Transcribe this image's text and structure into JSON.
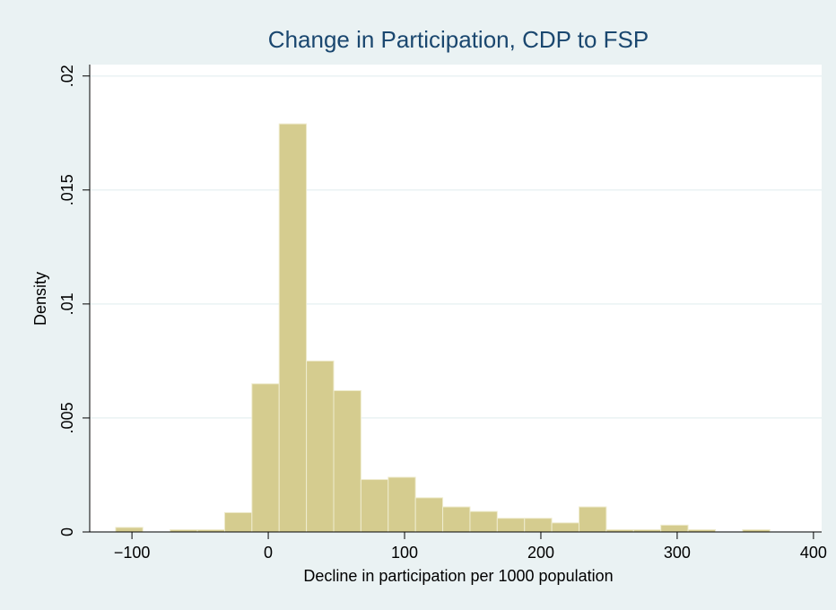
{
  "chart_data": {
    "type": "histogram",
    "title": "Change in Participation, CDP to FSP",
    "x_label": "Decline in participation per 1000 population",
    "y_label": "Density",
    "bins": [
      -112,
      -92,
      -72,
      -52,
      -32,
      -12,
      8,
      28,
      48,
      68,
      88,
      108,
      128,
      148,
      168,
      188,
      208,
      228,
      248,
      268,
      288,
      308,
      328,
      348,
      368,
      388
    ],
    "values": [
      0.0002,
      0,
      0.0001,
      0.0001,
      0.00085,
      0.0065,
      0.0179,
      0.0075,
      0.0062,
      0.0023,
      0.0024,
      0.0015,
      0.0011,
      0.0009,
      0.0006,
      0.0006,
      0.0004,
      0.0011,
      0.0001,
      0.0001,
      0.0003,
      0.0001,
      0,
      0.0001,
      0
    ],
    "color": "#d5cc8f",
    "xlim": [
      -131,
      406
    ],
    "ylim": [
      0,
      0.0205
    ],
    "xticks": [
      {
        "value": -100,
        "label": "−100"
      },
      0,
      100,
      200,
      300,
      400
    ],
    "yticks": [
      0,
      {
        "value": 0.005,
        "label": ".005"
      },
      {
        "value": 0.01,
        "label": ".01"
      },
      {
        "value": 0.015,
        "label": ".015"
      },
      {
        "value": 0.02,
        "label": ".02"
      }
    ],
    "grid": true
  }
}
